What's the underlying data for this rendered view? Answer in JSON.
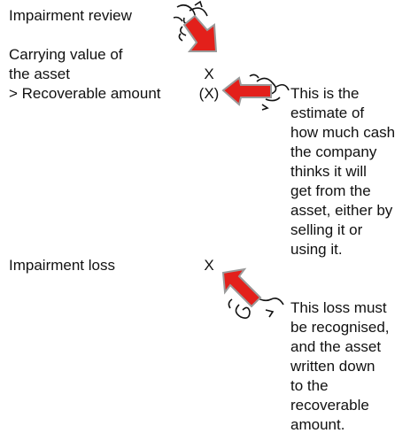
{
  "title": "Impairment review",
  "rows": [
    {
      "label_lines": [
        "Carrying value of",
        "the asset"
      ],
      "amount": "X"
    },
    {
      "label_lines": [
        "> Recoverable amount"
      ],
      "amount": "(X)"
    },
    {
      "label_lines": [
        "Impairment loss"
      ],
      "amount": "X"
    }
  ],
  "notes": [
    {
      "lines": [
        "This is the",
        "estimate of",
        "how much cash",
        "the company",
        "thinks it will",
        "get from the",
        "asset, either by",
        "selling it or",
        "using it."
      ]
    },
    {
      "lines": [
        "This loss must",
        "be recognised,",
        "and the asset",
        "written down",
        "to the",
        "recoverable",
        "amount."
      ]
    }
  ]
}
